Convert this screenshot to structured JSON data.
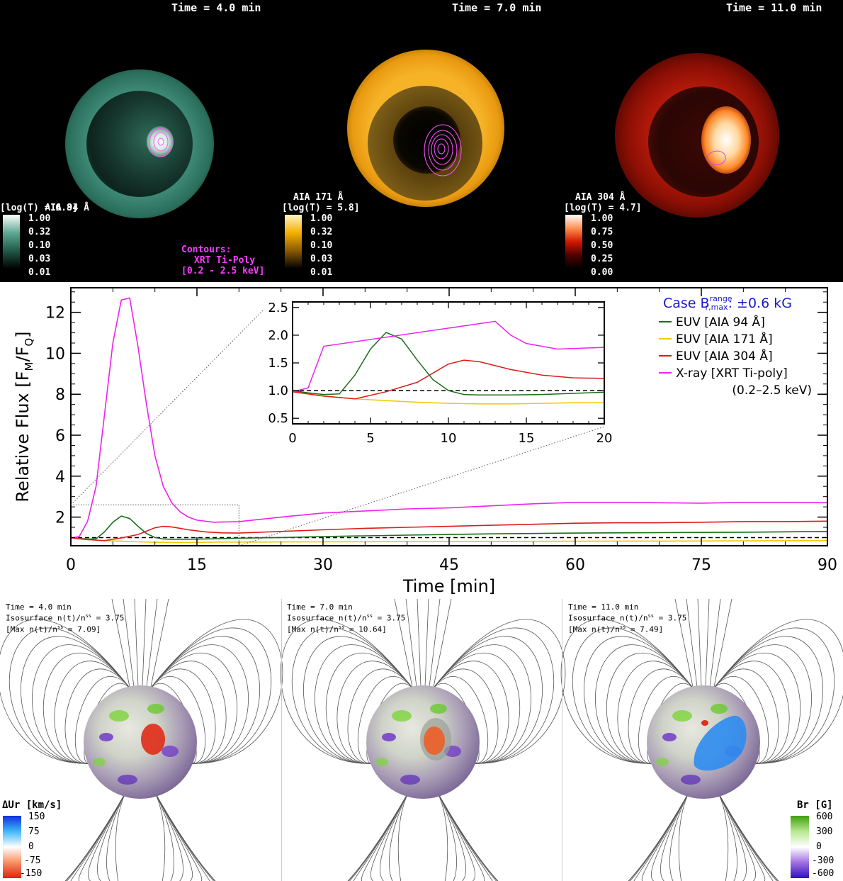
{
  "top_panels": [
    {
      "time": "Time = 4.0 min",
      "cbar_title": "AIA 94 Å",
      "cbar_sub": "[log(T) = 6.8]",
      "ticks": [
        "1.00",
        "0.32",
        "0.10",
        "0.03",
        "0.01"
      ]
    },
    {
      "time": "Time = 7.0 min",
      "cbar_title": "AIA 171 Å",
      "cbar_sub": "[log(T) = 5.8]",
      "ticks": [
        "1.00",
        "0.32",
        "0.10",
        "0.03",
        "0.01"
      ]
    },
    {
      "time": "Time = 11.0 min",
      "cbar_title": "AIA 304 Å",
      "cbar_sub": "[log(T) = 4.7]",
      "ticks": [
        "1.00",
        "0.75",
        "0.50",
        "0.25",
        "0.00"
      ]
    }
  ],
  "contours_note": {
    "line1": "Contours:",
    "line2": "XRT Ti-Poly",
    "line3": "[0.2 - 2.5 keV]"
  },
  "colors": {
    "euv94": "#1a6e1a",
    "euv171": "#f0c800",
    "euv304": "#dd1a1a",
    "xray": "#ee22ee",
    "legend_title": "#1a1acc"
  },
  "chart_data": {
    "type": "line",
    "xlabel": "Time [min]",
    "ylabel": "Relative Flux [F",
    "ylabel_sub_m": "M",
    "ylabel_slash": "/F",
    "ylabel_sub_q": "Q",
    "ylabel_end": "]",
    "xlim": [
      0,
      90
    ],
    "ylim": [
      0.6,
      13.2
    ],
    "xticks": [
      "0",
      "15",
      "30",
      "45",
      "60",
      "75",
      "90"
    ],
    "yticks": [
      "2",
      "4",
      "6",
      "8",
      "10",
      "12"
    ],
    "reference_line": 1.0,
    "legend": {
      "case_prefix": "Case B",
      "case_sup": "range",
      "case_sub": "r,max",
      "case_value": ": ±0.6 kG",
      "entries": [
        "EUV [AIA 94 Å]",
        "EUV [AIA 171 Å]",
        "EUV [AIA 304 Å]",
        "X-ray [XRT Ti-poly]"
      ],
      "note": "(0.2–2.5 keV)"
    },
    "inset": {
      "xlim": [
        0,
        20
      ],
      "ylim": [
        0.4,
        2.6
      ],
      "xticks": [
        "0",
        "5",
        "10",
        "15",
        "20"
      ],
      "yticks": [
        "0.5",
        "1.0",
        "1.5",
        "2.0",
        "2.5"
      ]
    },
    "series": [
      {
        "name": "EUV [AIA 94 Å]",
        "x": [
          0,
          1,
          2,
          3,
          4,
          5,
          6,
          7,
          8,
          9,
          10,
          11,
          12,
          14,
          16,
          18,
          20,
          25,
          30,
          40,
          50,
          60,
          70,
          80,
          90
        ],
        "y": [
          1.0,
          0.96,
          0.93,
          0.94,
          1.28,
          1.75,
          2.05,
          1.93,
          1.55,
          1.2,
          1.0,
          0.93,
          0.92,
          0.92,
          0.93,
          0.95,
          0.97,
          1.0,
          1.05,
          1.12,
          1.18,
          1.22,
          1.24,
          1.26,
          1.3
        ]
      },
      {
        "name": "EUV [AIA 171 Å]",
        "x": [
          0,
          2,
          4,
          6,
          8,
          10,
          12,
          14,
          16,
          18,
          20,
          30,
          40,
          50,
          60,
          70,
          80,
          90
        ],
        "y": [
          0.98,
          0.9,
          0.85,
          0.82,
          0.79,
          0.77,
          0.76,
          0.76,
          0.77,
          0.78,
          0.78,
          0.79,
          0.8,
          0.81,
          0.82,
          0.83,
          0.84,
          0.85
        ]
      },
      {
        "name": "EUV [AIA 304 Å]",
        "x": [
          0,
          2,
          4,
          6,
          8,
          10,
          11,
          12,
          14,
          16,
          18,
          20,
          25,
          30,
          35,
          40,
          45,
          50,
          55,
          60,
          65,
          70,
          75,
          80,
          85,
          90
        ],
        "y": [
          0.98,
          0.9,
          0.85,
          0.98,
          1.15,
          1.48,
          1.55,
          1.52,
          1.38,
          1.28,
          1.23,
          1.22,
          1.3,
          1.38,
          1.45,
          1.5,
          1.55,
          1.6,
          1.65,
          1.7,
          1.72,
          1.72,
          1.75,
          1.78,
          1.78,
          1.8
        ]
      },
      {
        "name": "X-ray [XRT Ti-poly]",
        "x": [
          0,
          1,
          2,
          3,
          4,
          5,
          6,
          7,
          8,
          9,
          10,
          11,
          12,
          13,
          14,
          15,
          17,
          20,
          25,
          30,
          35,
          40,
          45,
          50,
          55,
          60,
          65,
          70,
          75,
          80,
          85,
          90
        ],
        "y": [
          0.98,
          1.05,
          1.8,
          3.5,
          7.0,
          10.5,
          12.6,
          12.7,
          10.3,
          7.5,
          5.0,
          3.5,
          2.7,
          2.25,
          2.0,
          1.85,
          1.75,
          1.78,
          2.0,
          2.2,
          2.3,
          2.4,
          2.45,
          2.55,
          2.65,
          2.72,
          2.72,
          2.7,
          2.68,
          2.72,
          2.72,
          2.7
        ]
      }
    ]
  },
  "bottom_panels": [
    {
      "time": "Time = 4.0 min",
      "iso": "Isosurface n(t)/n",
      "iso_sup": "ss",
      "iso_val": " = 3.75",
      "max": "[Max n(t)/n",
      "max_sup": "ss",
      "max_val": " = 7.09]"
    },
    {
      "time": "Time = 7.0 min",
      "iso": "Isosurface n(t)/n",
      "iso_sup": "ss",
      "iso_val": " = 3.75",
      "max": "[Max n(t)/n",
      "max_sup": "ss",
      "max_val": " = 10.64]"
    },
    {
      "time": "Time = 11.0 min",
      "iso": "Isosurface n(t)/n",
      "iso_sup": "ss",
      "iso_val": " = 3.75",
      "max": "[Max n(t)/n",
      "max_sup": "ss",
      "max_val": " = 7.49]"
    }
  ],
  "dur_colorbar": {
    "title": "ΔUr [km/s]",
    "ticks": [
      "150",
      "75",
      "0",
      "-75",
      "-150"
    ]
  },
  "br_colorbar": {
    "title": "Br [G]",
    "ticks": [
      "600",
      "300",
      "0",
      "-300",
      "-600"
    ]
  }
}
